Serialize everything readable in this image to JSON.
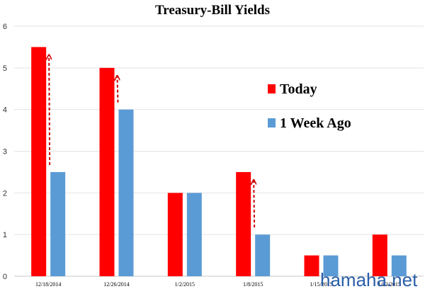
{
  "chart_data": {
    "type": "bar",
    "title": "Treasury-Bill Yields",
    "categories": [
      "12/18/2014",
      "12/26/2014",
      "1/2/2015",
      "1/8/2015",
      "1/15/2015",
      "1/23/2015"
    ],
    "series": [
      {
        "name": "Today",
        "color": "#ff0000",
        "values": [
          5.5,
          5.0,
          2.0,
          2.5,
          0.5,
          1.0
        ]
      },
      {
        "name": "1 Week Ago",
        "color": "#5b9bd5",
        "values": [
          2.5,
          4.0,
          2.0,
          1.0,
          0.5,
          0.5
        ]
      }
    ],
    "ylim": [
      0,
      6
    ],
    "yticks": [
      0,
      1,
      2,
      3,
      4,
      5,
      6
    ],
    "grid": true,
    "legend": "right",
    "arrows": [
      {
        "category": "12/18/2014",
        "from": 2.5,
        "to": 5.5
      },
      {
        "category": "12/26/2014",
        "from": 4.0,
        "to": 5.0
      },
      {
        "category": "1/8/2015",
        "from": 1.0,
        "to": 2.5
      }
    ],
    "arrow_color": "#cc0000"
  },
  "watermark": "hamaha.net"
}
